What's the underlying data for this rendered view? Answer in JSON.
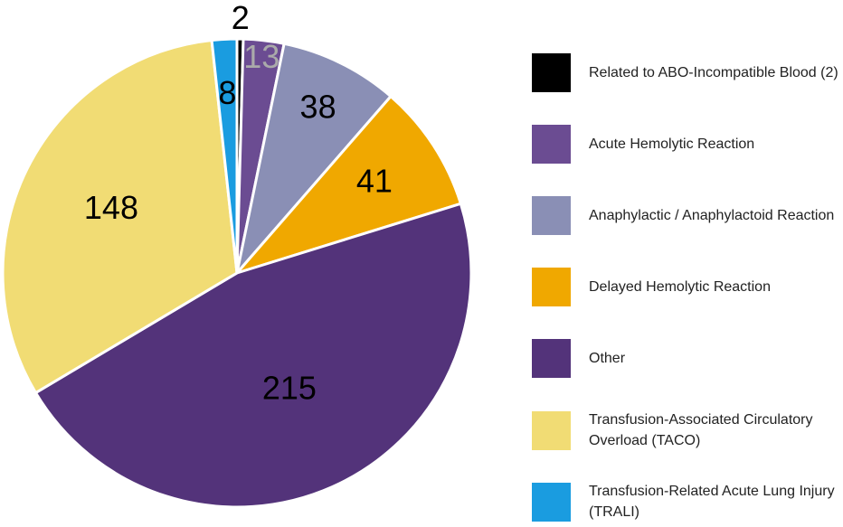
{
  "chart_data": {
    "type": "pie",
    "categories": [
      "Related to ABO-Incompatible Blood (2)",
      "Acute Hemolytic Reaction",
      "Anaphylactic / Anaphylactoid Reaction",
      "Delayed Hemolytic Reaction",
      "Other",
      "Transfusion-Associated Circulatory Overload (TACO)",
      "Transfusion-Related Acute Lung Injury (TRALI)"
    ],
    "values": [
      2,
      13,
      38,
      41,
      215,
      148,
      8
    ],
    "colors": [
      "#000000",
      "#6b4c92",
      "#8a8fb5",
      "#f0a800",
      "#53337a",
      "#f1dc74",
      "#1a9ce0"
    ],
    "legend": "right"
  }
}
